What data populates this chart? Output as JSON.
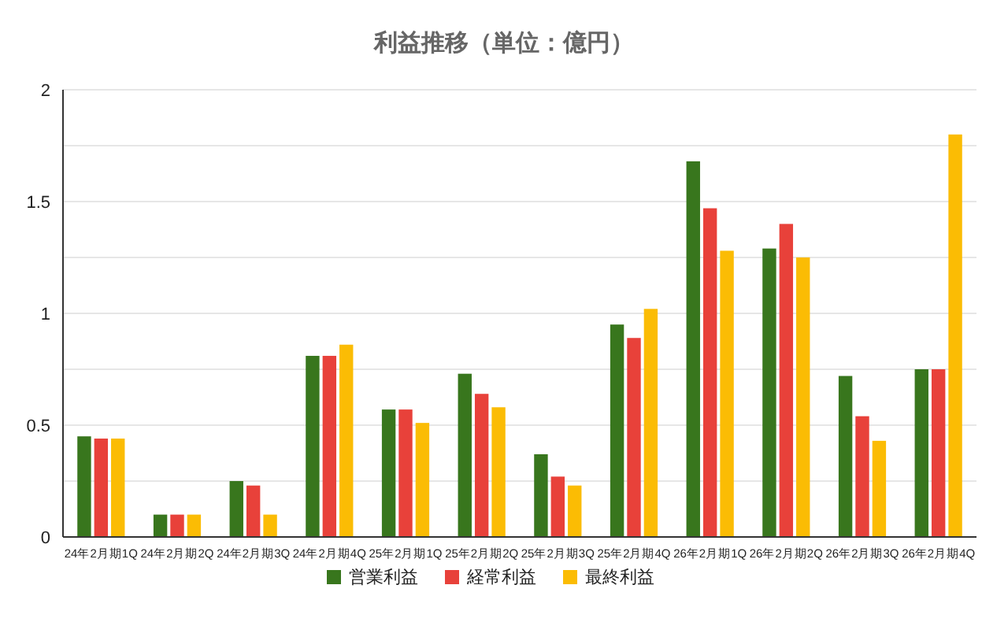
{
  "chart_data": {
    "type": "bar",
    "title": "利益推移（単位：億円）",
    "categories": [
      "24年2月期1Q",
      "24年2月期2Q",
      "24年2月期3Q",
      "24年2月期4Q",
      "25年2月期1Q",
      "25年2月期2Q",
      "25年2月期3Q",
      "25年2月期4Q",
      "26年2月期1Q",
      "26年2月期2Q",
      "26年2月期3Q",
      "26年2月期4Q"
    ],
    "series": [
      {
        "name": "営業利益",
        "color": "#38761d",
        "values": [
          0.45,
          0.1,
          0.25,
          0.81,
          0.57,
          0.73,
          0.37,
          0.95,
          1.68,
          1.29,
          0.72,
          0.75
        ]
      },
      {
        "name": "経常利益",
        "color": "#e8413a",
        "values": [
          0.44,
          0.1,
          0.23,
          0.81,
          0.57,
          0.64,
          0.27,
          0.89,
          1.47,
          1.4,
          0.54,
          0.75
        ]
      },
      {
        "name": "最終利益",
        "color": "#fbbc04",
        "values": [
          0.44,
          0.1,
          0.1,
          0.86,
          0.51,
          0.58,
          0.23,
          1.02,
          1.28,
          1.25,
          0.43,
          1.8
        ]
      }
    ],
    "ylim": [
      0,
      2
    ],
    "yticks": [
      0,
      {
        "value": 0.25,
        "label": null
      },
      0.5,
      {
        "value": 0.75,
        "label": null
      },
      1,
      {
        "value": 1.25,
        "label": null
      },
      1.5,
      {
        "value": 1.75,
        "label": null
      },
      2
    ],
    "grid": "y",
    "legend": "bottom"
  }
}
